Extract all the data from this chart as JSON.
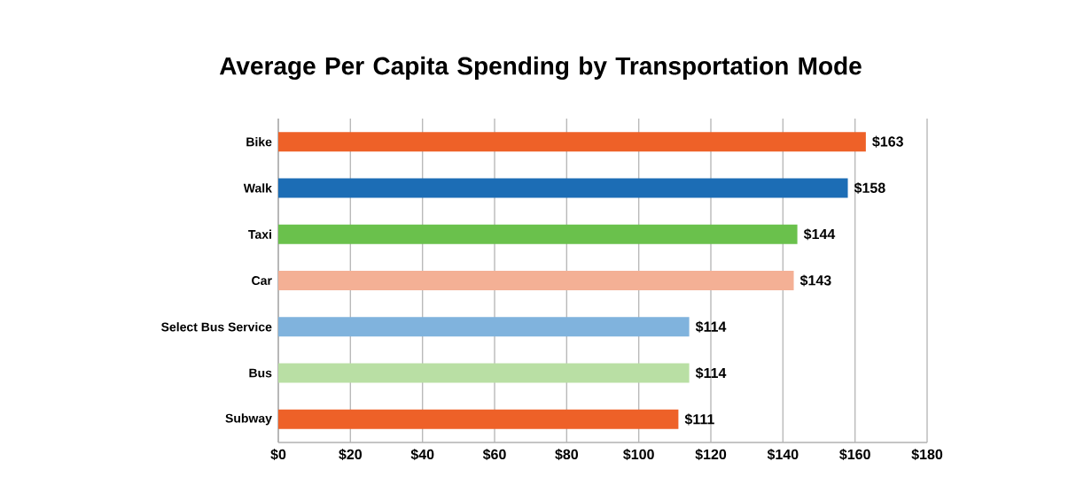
{
  "chart_data": {
    "type": "bar",
    "orientation": "horizontal",
    "title": "Average Per Capita Spending by Transportation Mode",
    "categories": [
      "Bike",
      "Walk",
      "Taxi",
      "Car",
      "Select Bus Service",
      "Bus",
      "Subway"
    ],
    "values": [
      163,
      158,
      144,
      143,
      114,
      114,
      111
    ],
    "colors": [
      "#ee6128",
      "#1c6db5",
      "#6ac14c",
      "#f4b095",
      "#80b3dd",
      "#b9dfa4",
      "#ee6128"
    ],
    "value_labels": [
      "$163",
      "$158",
      "$144",
      "$143",
      "$114",
      "$114",
      "$111"
    ],
    "xlim": [
      0,
      180
    ],
    "xticks": [
      {
        "value": 0,
        "label": "$0"
      },
      {
        "value": 20,
        "label": "$20"
      },
      {
        "value": 40,
        "label": "$40"
      },
      {
        "value": 60,
        "label": "$60"
      },
      {
        "value": 80,
        "label": "$80"
      },
      {
        "value": 100,
        "label": "$100"
      },
      {
        "value": 120,
        "label": "$120"
      },
      {
        "value": 140,
        "label": "$140"
      },
      {
        "value": 160,
        "label": "$160"
      },
      {
        "value": 180,
        "label": "$180"
      }
    ],
    "grid": "x"
  }
}
